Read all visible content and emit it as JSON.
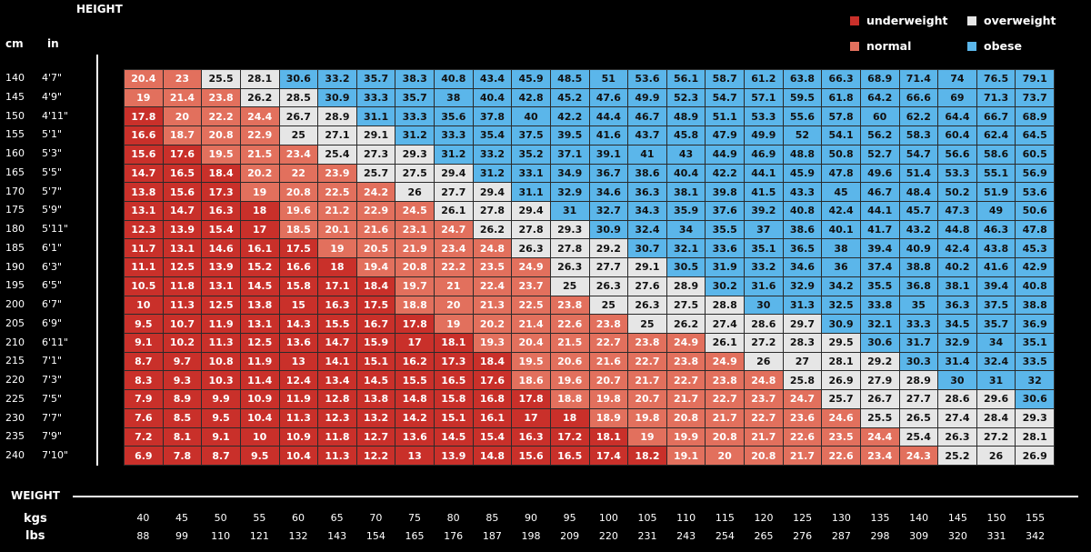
{
  "chart_data": {
    "type": "heatmap",
    "title": "",
    "ylabel": "HEIGHT",
    "xlabel": "WEIGHT",
    "height_units": [
      "cm",
      "in"
    ],
    "weight_units": [
      "kgs",
      "lbs"
    ],
    "heights_cm": [
      "140",
      "145",
      "150",
      "155",
      "160",
      "165",
      "170",
      "175",
      "180",
      "185",
      "190",
      "195",
      "200",
      "205",
      "210",
      "215",
      "220",
      "225",
      "230",
      "235",
      "240"
    ],
    "heights_in": [
      "4'7\"",
      "4'9\"",
      "4'11\"",
      "5'1\"",
      "5'3\"",
      "5'5\"",
      "5'7\"",
      "5'9\"",
      "5'11\"",
      "6'1\"",
      "6'3\"",
      "6'5\"",
      "6'7\"",
      "6'9\"",
      "6'11\"",
      "7'1\"",
      "7'3\"",
      "7'5\"",
      "7'7\"",
      "7'9\"",
      "7'10\""
    ],
    "weights_kg": [
      "40",
      "45",
      "50",
      "55",
      "60",
      "65",
      "70",
      "75",
      "80",
      "85",
      "90",
      "95",
      "100",
      "105",
      "110",
      "115",
      "120",
      "125",
      "130",
      "135",
      "140",
      "145",
      "150",
      "155"
    ],
    "weights_lbs": [
      "88",
      "99",
      "110",
      "121",
      "132",
      "143",
      "154",
      "165",
      "176",
      "187",
      "198",
      "209",
      "220",
      "231",
      "243",
      "254",
      "265",
      "276",
      "287",
      "298",
      "309",
      "320",
      "331",
      "342"
    ],
    "values": [
      [
        "20.4",
        "23",
        "25.5",
        "28.1",
        "30.6",
        "33.2",
        "35.7",
        "38.3",
        "40.8",
        "43.4",
        "45.9",
        "48.5",
        "51",
        "53.6",
        "56.1",
        "58.7",
        "61.2",
        "63.8",
        "66.3",
        "68.9",
        "71.4",
        "74",
        "76.5",
        "79.1"
      ],
      [
        "19",
        "21.4",
        "23.8",
        "26.2",
        "28.5",
        "30.9",
        "33.3",
        "35.7",
        "38",
        "40.4",
        "42.8",
        "45.2",
        "47.6",
        "49.9",
        "52.3",
        "54.7",
        "57.1",
        "59.5",
        "61.8",
        "64.2",
        "66.6",
        "69",
        "71.3",
        "73.7"
      ],
      [
        "17.8",
        "20",
        "22.2",
        "24.4",
        "26.7",
        "28.9",
        "31.1",
        "33.3",
        "35.6",
        "37.8",
        "40",
        "42.2",
        "44.4",
        "46.7",
        "48.9",
        "51.1",
        "53.3",
        "55.6",
        "57.8",
        "60",
        "62.2",
        "64.4",
        "66.7",
        "68.9"
      ],
      [
        "16.6",
        "18.7",
        "20.8",
        "22.9",
        "25",
        "27.1",
        "29.1",
        "31.2",
        "33.3",
        "35.4",
        "37.5",
        "39.5",
        "41.6",
        "43.7",
        "45.8",
        "47.9",
        "49.9",
        "52",
        "54.1",
        "56.2",
        "58.3",
        "60.4",
        "62.4",
        "64.5"
      ],
      [
        "15.6",
        "17.6",
        "19.5",
        "21.5",
        "23.4",
        "25.4",
        "27.3",
        "29.3",
        "31.2",
        "33.2",
        "35.2",
        "37.1",
        "39.1",
        "41",
        "43",
        "44.9",
        "46.9",
        "48.8",
        "50.8",
        "52.7",
        "54.7",
        "56.6",
        "58.6",
        "60.5"
      ],
      [
        "14.7",
        "16.5",
        "18.4",
        "20.2",
        "22",
        "23.9",
        "25.7",
        "27.5",
        "29.4",
        "31.2",
        "33.1",
        "34.9",
        "36.7",
        "38.6",
        "40.4",
        "42.2",
        "44.1",
        "45.9",
        "47.8",
        "49.6",
        "51.4",
        "53.3",
        "55.1",
        "56.9"
      ],
      [
        "13.8",
        "15.6",
        "17.3",
        "19",
        "20.8",
        "22.5",
        "24.2",
        "26",
        "27.7",
        "29.4",
        "31.1",
        "32.9",
        "34.6",
        "36.3",
        "38.1",
        "39.8",
        "41.5",
        "43.3",
        "45",
        "46.7",
        "48.4",
        "50.2",
        "51.9",
        "53.6"
      ],
      [
        "13.1",
        "14.7",
        "16.3",
        "18",
        "19.6",
        "21.2",
        "22.9",
        "24.5",
        "26.1",
        "27.8",
        "29.4",
        "31",
        "32.7",
        "34.3",
        "35.9",
        "37.6",
        "39.2",
        "40.8",
        "42.4",
        "44.1",
        "45.7",
        "47.3",
        "49",
        "50.6"
      ],
      [
        "12.3",
        "13.9",
        "15.4",
        "17",
        "18.5",
        "20.1",
        "21.6",
        "23.1",
        "24.7",
        "26.2",
        "27.8",
        "29.3",
        "30.9",
        "32.4",
        "34",
        "35.5",
        "37",
        "38.6",
        "40.1",
        "41.7",
        "43.2",
        "44.8",
        "46.3",
        "47.8"
      ],
      [
        "11.7",
        "13.1",
        "14.6",
        "16.1",
        "17.5",
        "19",
        "20.5",
        "21.9",
        "23.4",
        "24.8",
        "26.3",
        "27.8",
        "29.2",
        "30.7",
        "32.1",
        "33.6",
        "35.1",
        "36.5",
        "38",
        "39.4",
        "40.9",
        "42.4",
        "43.8",
        "45.3"
      ],
      [
        "11.1",
        "12.5",
        "13.9",
        "15.2",
        "16.6",
        "18",
        "19.4",
        "20.8",
        "22.2",
        "23.5",
        "24.9",
        "26.3",
        "27.7",
        "29.1",
        "30.5",
        "31.9",
        "33.2",
        "34.6",
        "36",
        "37.4",
        "38.8",
        "40.2",
        "41.6",
        "42.9"
      ],
      [
        "10.5",
        "11.8",
        "13.1",
        "14.5",
        "15.8",
        "17.1",
        "18.4",
        "19.7",
        "21",
        "22.4",
        "23.7",
        "25",
        "26.3",
        "27.6",
        "28.9",
        "30.2",
        "31.6",
        "32.9",
        "34.2",
        "35.5",
        "36.8",
        "38.1",
        "39.4",
        "40.8"
      ],
      [
        "10",
        "11.3",
        "12.5",
        "13.8",
        "15",
        "16.3",
        "17.5",
        "18.8",
        "20",
        "21.3",
        "22.5",
        "23.8",
        "25",
        "26.3",
        "27.5",
        "28.8",
        "30",
        "31.3",
        "32.5",
        "33.8",
        "35",
        "36.3",
        "37.5",
        "38.8"
      ],
      [
        "9.5",
        "10.7",
        "11.9",
        "13.1",
        "14.3",
        "15.5",
        "16.7",
        "17.8",
        "19",
        "20.2",
        "21.4",
        "22.6",
        "23.8",
        "25",
        "26.2",
        "27.4",
        "28.6",
        "29.7",
        "30.9",
        "32.1",
        "33.3",
        "34.5",
        "35.7",
        "36.9"
      ],
      [
        "9.1",
        "10.2",
        "11.3",
        "12.5",
        "13.6",
        "14.7",
        "15.9",
        "17",
        "18.1",
        "19.3",
        "20.4",
        "21.5",
        "22.7",
        "23.8",
        "24.9",
        "26.1",
        "27.2",
        "28.3",
        "29.5",
        "30.6",
        "31.7",
        "32.9",
        "34",
        "35.1"
      ],
      [
        "8.7",
        "9.7",
        "10.8",
        "11.9",
        "13",
        "14.1",
        "15.1",
        "16.2",
        "17.3",
        "18.4",
        "19.5",
        "20.6",
        "21.6",
        "22.7",
        "23.8",
        "24.9",
        "26",
        "27",
        "28.1",
        "29.2",
        "30.3",
        "31.4",
        "32.4",
        "33.5"
      ],
      [
        "8.3",
        "9.3",
        "10.3",
        "11.4",
        "12.4",
        "13.4",
        "14.5",
        "15.5",
        "16.5",
        "17.6",
        "18.6",
        "19.6",
        "20.7",
        "21.7",
        "22.7",
        "23.8",
        "24.8",
        "25.8",
        "26.9",
        "27.9",
        "28.9",
        "30",
        "31",
        "32"
      ],
      [
        "7.9",
        "8.9",
        "9.9",
        "10.9",
        "11.9",
        "12.8",
        "13.8",
        "14.8",
        "15.8",
        "16.8",
        "17.8",
        "18.8",
        "19.8",
        "20.7",
        "21.7",
        "22.7",
        "23.7",
        "24.7",
        "25.7",
        "26.7",
        "27.7",
        "28.6",
        "29.6",
        "30.6"
      ],
      [
        "7.6",
        "8.5",
        "9.5",
        "10.4",
        "11.3",
        "12.3",
        "13.2",
        "14.2",
        "15.1",
        "16.1",
        "17",
        "18",
        "18.9",
        "19.8",
        "20.8",
        "21.7",
        "22.7",
        "23.6",
        "24.6",
        "25.5",
        "26.5",
        "27.4",
        "28.4",
        "29.3"
      ],
      [
        "7.2",
        "8.1",
        "9.1",
        "10",
        "10.9",
        "11.8",
        "12.7",
        "13.6",
        "14.5",
        "15.4",
        "16.3",
        "17.2",
        "18.1",
        "19",
        "19.9",
        "20.8",
        "21.7",
        "22.6",
        "23.5",
        "24.4",
        "25.4",
        "26.3",
        "27.2",
        "28.1"
      ],
      [
        "6.9",
        "7.8",
        "8.7",
        "9.5",
        "10.4",
        "11.3",
        "12.2",
        "13",
        "13.9",
        "14.8",
        "15.6",
        "16.5",
        "17.4",
        "18.2",
        "19.1",
        "20",
        "20.8",
        "21.7",
        "22.6",
        "23.4",
        "24.3",
        "25.2",
        "26",
        "26.9"
      ]
    ],
    "legend": {
      "placement": "top-right",
      "items": [
        {
          "label": "underweight",
          "color": "#c9302a"
        },
        {
          "label": "normal",
          "color": "#e2705d"
        },
        {
          "label": "overweight",
          "color": "#e6e6e6"
        },
        {
          "label": "obese",
          "color": "#5bb6ea"
        }
      ]
    },
    "grid": true
  }
}
